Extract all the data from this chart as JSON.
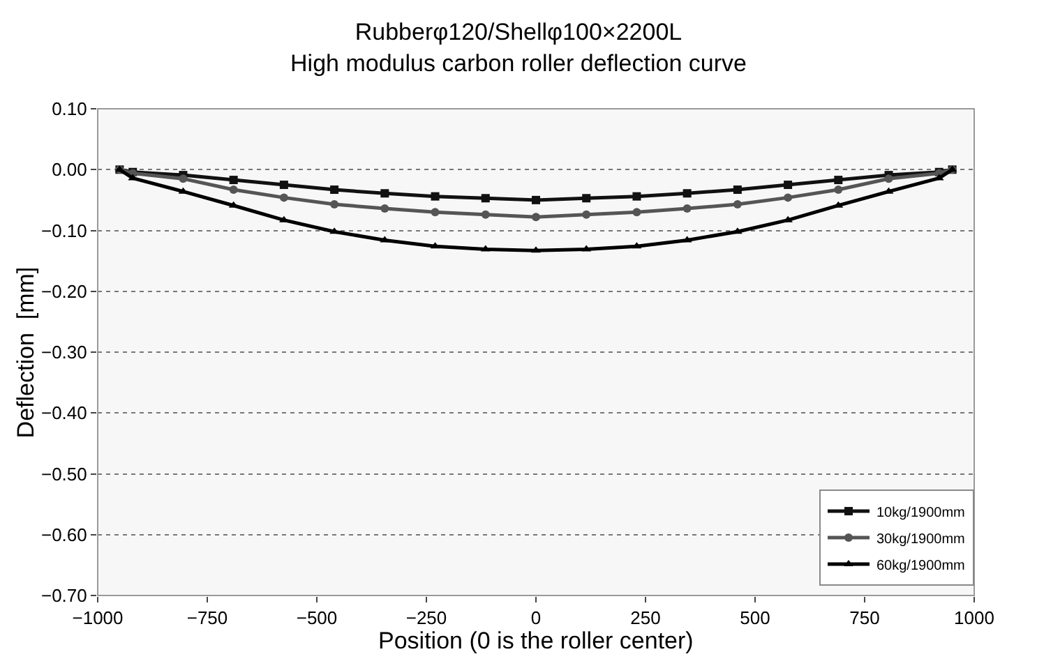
{
  "chart_data": {
    "type": "line",
    "title": "Rubberφ120/Shellφ100×2200L",
    "subtitle": "High modulus carbon roller deflection curve",
    "xlabel": "Position (0 is the roller center)",
    "ylabel": "Deflection  [mm]",
    "x": [
      -950,
      -920,
      -805,
      -690,
      -575,
      -460,
      -345,
      -230,
      -115,
      0,
      115,
      230,
      345,
      460,
      575,
      690,
      805,
      920,
      950
    ],
    "series": [
      {
        "name": "10kg/1900mm",
        "color": "#111111",
        "marker": "square",
        "values": [
          0,
          -0.004,
          -0.009,
          -0.017,
          -0.025,
          -0.033,
          -0.039,
          -0.044,
          -0.047,
          -0.05,
          -0.047,
          -0.044,
          -0.039,
          -0.033,
          -0.025,
          -0.017,
          -0.009,
          -0.004,
          0
        ]
      },
      {
        "name": "30kg/1900mm",
        "color": "#555555",
        "marker": "circle",
        "values": [
          0,
          -0.006,
          -0.015,
          -0.033,
          -0.046,
          -0.057,
          -0.064,
          -0.07,
          -0.074,
          -0.078,
          -0.074,
          -0.07,
          -0.064,
          -0.057,
          -0.046,
          -0.033,
          -0.015,
          -0.006,
          0
        ]
      },
      {
        "name": "60kg/1900mm",
        "color": "#000000",
        "marker": "triangle",
        "values": [
          0,
          -0.014,
          -0.036,
          -0.059,
          -0.083,
          -0.102,
          -0.116,
          -0.126,
          -0.131,
          -0.133,
          -0.131,
          -0.126,
          -0.116,
          -0.102,
          -0.083,
          -0.059,
          -0.036,
          -0.014,
          0
        ]
      }
    ],
    "xlim": [
      -1000,
      1000
    ],
    "xticks": [
      {
        "value": -1000,
        "label": "−1000"
      },
      {
        "value": -750,
        "label": "−750"
      },
      {
        "value": -500,
        "label": "−500"
      },
      {
        "value": -250,
        "label": "−250"
      },
      0,
      250,
      500,
      750,
      1000
    ],
    "ylim": [
      -0.7,
      0.1
    ],
    "yticks": [
      {
        "value": -0.7,
        "label": "−0.70"
      },
      {
        "value": -0.6,
        "label": "−0.60"
      },
      {
        "value": -0.5,
        "label": "−0.50"
      },
      {
        "value": -0.4,
        "label": "−0.40"
      },
      {
        "value": -0.3,
        "label": "−0.30"
      },
      {
        "value": -0.2,
        "label": "−0.20"
      },
      {
        "value": -0.1,
        "label": "−0.10"
      },
      {
        "value": 0,
        "label": "0.00"
      },
      {
        "value": 0.1,
        "label": "0.10"
      }
    ],
    "grid": "y",
    "legend": "bottom right",
    "line_style": "solid"
  }
}
